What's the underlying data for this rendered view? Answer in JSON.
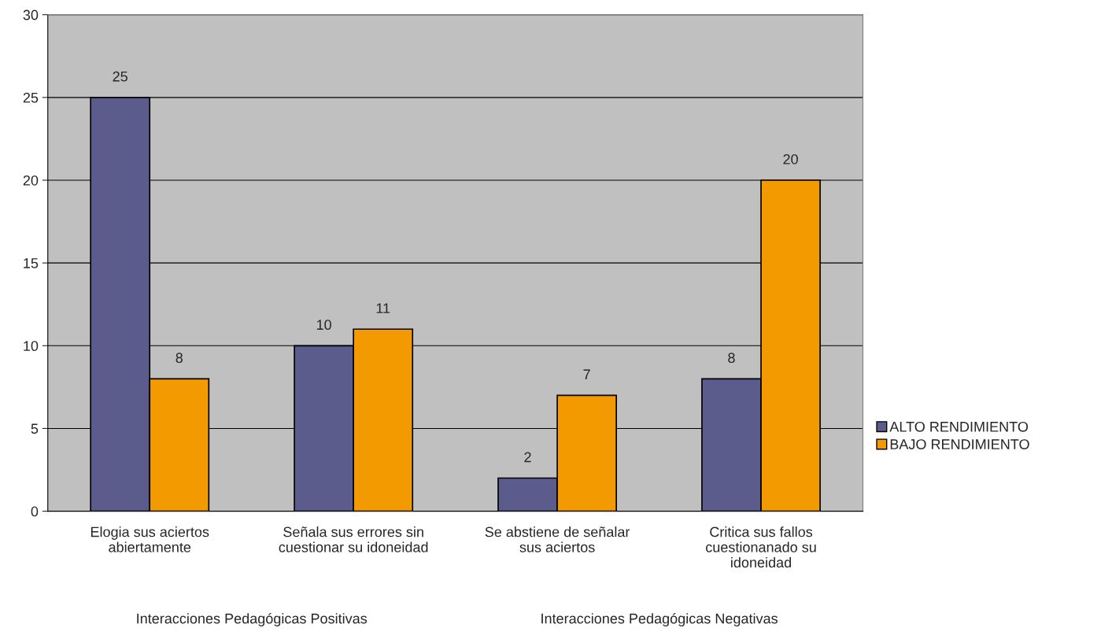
{
  "chart_data": {
    "type": "bar",
    "categories": [
      "Elogia sus aciertos\nabiertamente",
      "Señala sus errores sin\ncuestionar su idoneidad",
      "Se abstiene de señalar\nsus aciertos",
      "Critica sus fallos\ncuestionanado su\nidoneidad"
    ],
    "series": [
      {
        "name": "ALTO RENDIMIENTO",
        "color": "#5c5c8c",
        "values": [
          25,
          10,
          2,
          8
        ]
      },
      {
        "name": "BAJO RENDIMIENTO",
        "color": "#f39a00",
        "values": [
          8,
          11,
          7,
          20
        ]
      }
    ],
    "ylim": [
      0,
      30
    ],
    "yticks": [
      0,
      5,
      10,
      15,
      20,
      25,
      30
    ],
    "grid": "y",
    "legend": "right",
    "data_labels": true,
    "annotations": [
      "Interacciones Pedagógicas Positivas",
      "Interacciones Pedagógicas Negativas"
    ]
  }
}
